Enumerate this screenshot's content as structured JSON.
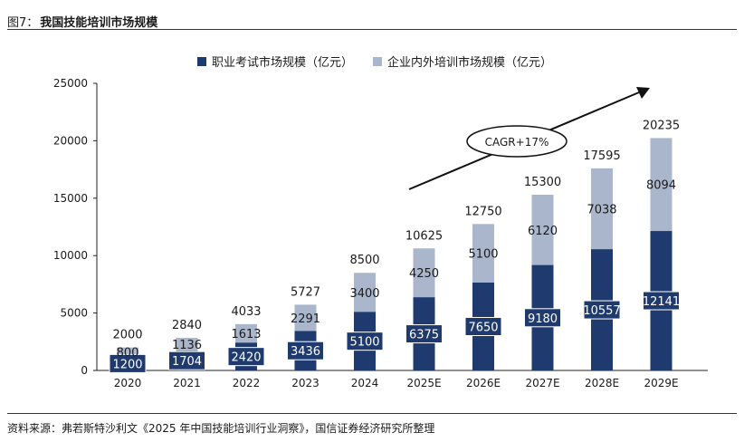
{
  "figure": {
    "number": "图7：",
    "title": "我国技能培训市场规模",
    "source": "资料来源：弗若斯特沙利文《2025 年中国技能培训行业洞察》，国信证券经济研究所整理"
  },
  "annotation": {
    "text": "CAGR+17%"
  },
  "colors": {
    "series1": "#1f3a6e",
    "series2": "#a9b6cc"
  },
  "chart_data": {
    "type": "bar",
    "stacked": true,
    "categories": [
      "2020",
      "2021",
      "2022",
      "2023",
      "2024",
      "2025E",
      "2026E",
      "2027E",
      "2028E",
      "2029E"
    ],
    "series": [
      {
        "name": "职业考试市场规模（亿元）",
        "values": [
          1200,
          1704,
          2420,
          3436,
          5100,
          6375,
          7650,
          9180,
          10557,
          12141
        ]
      },
      {
        "name": "企业内外培训市场规模（亿元）",
        "values": [
          800,
          1136,
          1613,
          2291,
          3400,
          4250,
          5100,
          6120,
          7038,
          8094
        ]
      }
    ],
    "totals": [
      2000,
      2840,
      4033,
      5727,
      8500,
      10625,
      12750,
      15300,
      17595,
      20235
    ],
    "ylim": [
      0,
      25000
    ],
    "yticks": [
      "0",
      "5000",
      "10000",
      "15000",
      "20000",
      "25000"
    ],
    "legend": "top-center",
    "grid": false
  }
}
